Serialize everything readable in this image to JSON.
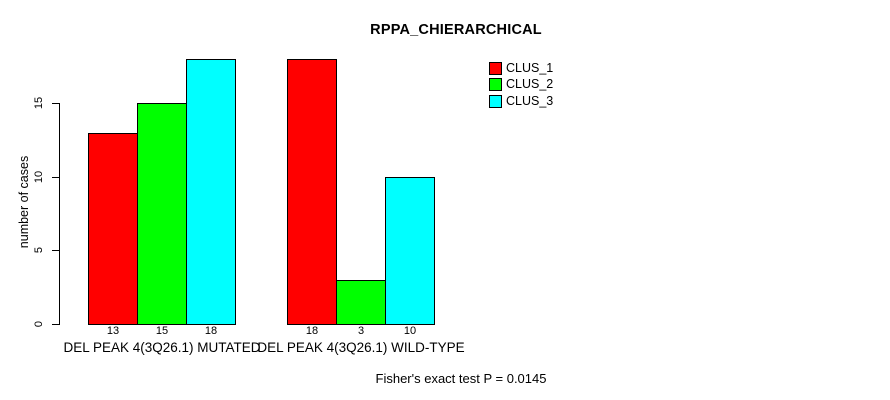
{
  "title": "RPPA_CHIERARCHICAL",
  "footer": "Fisher's exact test P = 0.0145",
  "chart_data": {
    "type": "bar",
    "title": "RPPA_CHIERARCHICAL",
    "xlabel": "",
    "ylabel": "number of cases",
    "ylim": [
      0,
      18
    ],
    "yticks": [
      0,
      5,
      10,
      15
    ],
    "grid": false,
    "legend_position": "top-right",
    "categories": [
      "DEL PEAK 4(3Q26.1) MUTATED",
      "DEL PEAK 4(3Q26.1) WILD-TYPE"
    ],
    "series": [
      {
        "name": "CLUS_1",
        "color": "#ff0000",
        "values": [
          13,
          18
        ]
      },
      {
        "name": "CLUS_2",
        "color": "#00ff00",
        "values": [
          15,
          3
        ]
      },
      {
        "name": "CLUS_3",
        "color": "#00ffff",
        "values": [
          18,
          10
        ]
      }
    ],
    "bar_value_labels": [
      [
        13,
        15,
        18
      ],
      [
        18,
        3,
        10
      ]
    ],
    "annotation": "Fisher's exact test P = 0.0145"
  },
  "colors": {
    "background": "#ffffff",
    "axis": "#000000",
    "bar_border": "#000000",
    "clus_1": "#ff0000",
    "clus_2": "#00ff00",
    "clus_3": "#00ffff"
  }
}
